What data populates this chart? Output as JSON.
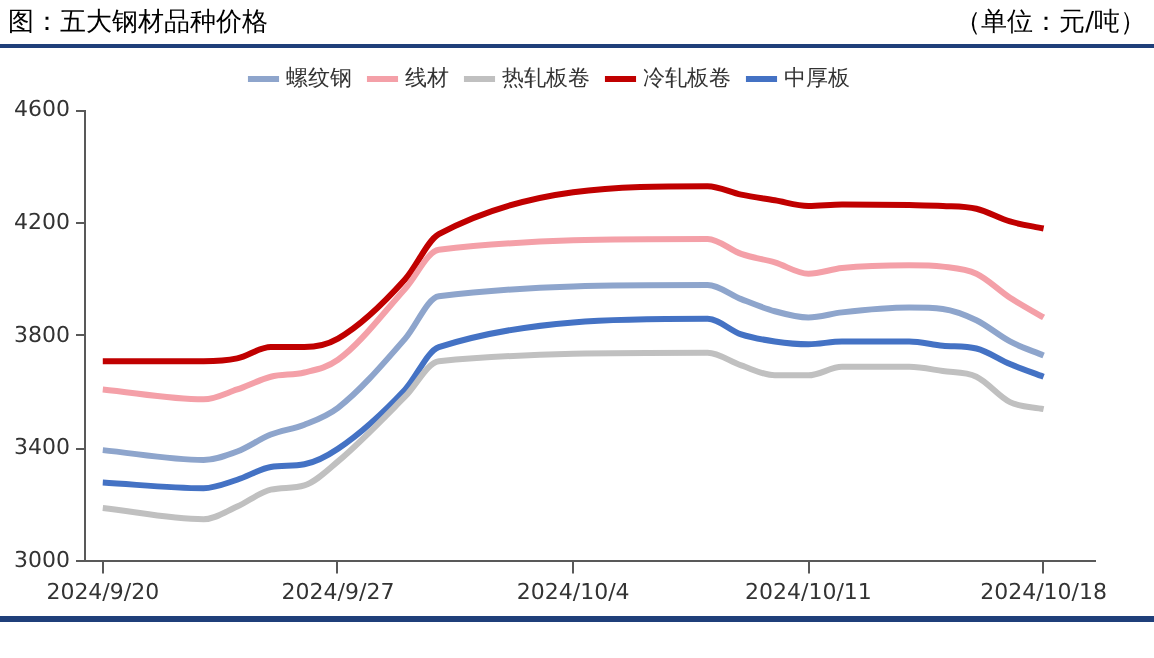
{
  "chart_data": {
    "type": "line",
    "title": "图：五大钢材品种价格",
    "ylabel": "（单位：元/吨）",
    "x": [
      "2024-09-20",
      "2024-09-23",
      "2024-09-24",
      "2024-09-25",
      "2024-09-26",
      "2024-09-27",
      "2024-09-29",
      "2024-09-30",
      "2024-10-08",
      "2024-10-09",
      "2024-10-10",
      "2024-10-11",
      "2024-10-12",
      "2024-10-14",
      "2024-10-15",
      "2024-10-16",
      "2024-10-17",
      "2024-10-18"
    ],
    "series": [
      {
        "name": "螺纹钢",
        "color": "#8ea5cc",
        "values": [
          3395,
          3360,
          3390,
          3450,
          3485,
          3545,
          3790,
          3940,
          3980,
          3930,
          3887,
          3865,
          3883,
          3900,
          3895,
          3855,
          3780,
          3730
        ]
      },
      {
        "name": "线材",
        "color": "#f4a0a8",
        "values": [
          3610,
          3575,
          3610,
          3655,
          3670,
          3715,
          3967,
          4105,
          4143,
          4090,
          4060,
          4020,
          4040,
          4050,
          4045,
          4020,
          3935,
          3865
        ]
      },
      {
        "name": "热轧板卷",
        "color": "#c0c0c0",
        "values": [
          3190,
          3150,
          3195,
          3255,
          3270,
          3355,
          3585,
          3710,
          3740,
          3695,
          3660,
          3660,
          3690,
          3690,
          3675,
          3655,
          3565,
          3540
        ]
      },
      {
        "name": "冷轧板卷",
        "color": "#c00000",
        "values": [
          3710,
          3710,
          3720,
          3760,
          3760,
          3790,
          4000,
          4160,
          4330,
          4300,
          4280,
          4260,
          4265,
          4263,
          4260,
          4250,
          4205,
          4180
        ]
      },
      {
        "name": "中厚板",
        "color": "#4472c4",
        "values": [
          3280,
          3260,
          3290,
          3335,
          3345,
          3400,
          3610,
          3760,
          3860,
          3805,
          3780,
          3770,
          3780,
          3780,
          3765,
          3755,
          3700,
          3655
        ]
      }
    ],
    "xlim": [
      "2024-09-19T12:00",
      "2024-10-19T12:00"
    ],
    "xticks": [
      {
        "value": "2024-09-20",
        "label": "2024/9/20"
      },
      {
        "value": "2024-09-27",
        "label": "2024/9/27"
      },
      {
        "value": "2024-10-04",
        "label": "2024/10/4"
      },
      {
        "value": "2024-10-11",
        "label": "2024/10/11"
      },
      {
        "value": "2024-10-18",
        "label": "2024/10/18"
      }
    ],
    "ylim": [
      3000,
      4600
    ],
    "yticks": [
      3000,
      3400,
      3800,
      4200,
      4600
    ],
    "grid": false,
    "legend": "top",
    "marker": "none",
    "line_style": "solid"
  }
}
